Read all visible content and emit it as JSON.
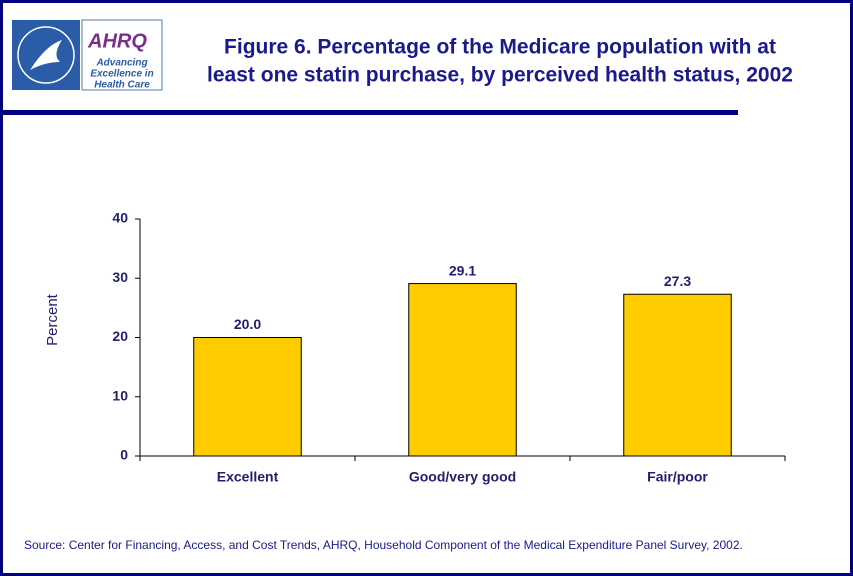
{
  "logo": {
    "name": "AHRQ",
    "tagline": [
      "Advancing",
      "Excellence in",
      "Health Care"
    ]
  },
  "chart_data": {
    "type": "bar",
    "title": [
      "Figure 6. Percentage of the Medicare population with at",
      "least one statin purchase, by perceived health status, 2002"
    ],
    "y_label": "Percent",
    "categories": [
      "Excellent",
      "Good/very good",
      "Fair/poor"
    ],
    "values": [
      20.0,
      29.1,
      27.3
    ],
    "value_labels": [
      "20.0",
      "29.1",
      "27.3"
    ],
    "color": "#ffcc00",
    "ylim": [
      0,
      40
    ],
    "yticks": [
      0,
      10,
      20,
      30,
      40
    ],
    "grid": false,
    "source": "Source: Center for Financing, Access, and Cost Trends, AHRQ, Household Component of the Medical Expenditure Panel Survey, 2002."
  }
}
